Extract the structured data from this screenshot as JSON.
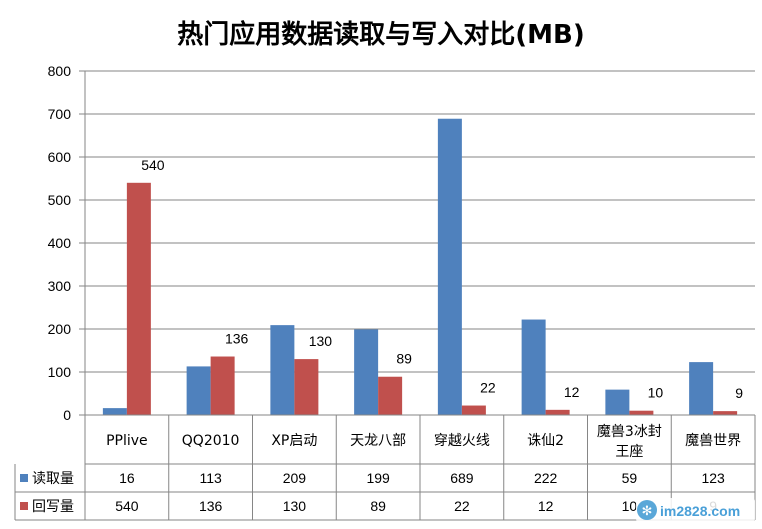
{
  "chart_data": {
    "type": "bar",
    "title": "热门应用数据读取与写入对比(MB)",
    "categories": [
      [
        "PPlive"
      ],
      [
        "QQ2010"
      ],
      [
        "XP启动"
      ],
      [
        "天龙八部"
      ],
      [
        "穿越火线"
      ],
      [
        "诛仙2"
      ],
      [
        "魔兽3冰封",
        "王座"
      ],
      [
        "魔兽世界"
      ]
    ],
    "series": [
      {
        "name": "读取量",
        "color": "#4F81BD",
        "values": [
          16,
          113,
          209,
          199,
          689,
          222,
          59,
          123
        ],
        "labeled": false
      },
      {
        "name": "回写量",
        "color": "#C0504D",
        "values": [
          540,
          136,
          130,
          89,
          22,
          12,
          10,
          9
        ],
        "labeled": true
      }
    ],
    "ylim": [
      0,
      800
    ],
    "yticks": [
      0,
      100,
      200,
      300,
      400,
      500,
      600,
      700,
      800
    ],
    "grid": true,
    "legend": "data-table"
  },
  "watermark": {
    "text": "im2828.com"
  }
}
